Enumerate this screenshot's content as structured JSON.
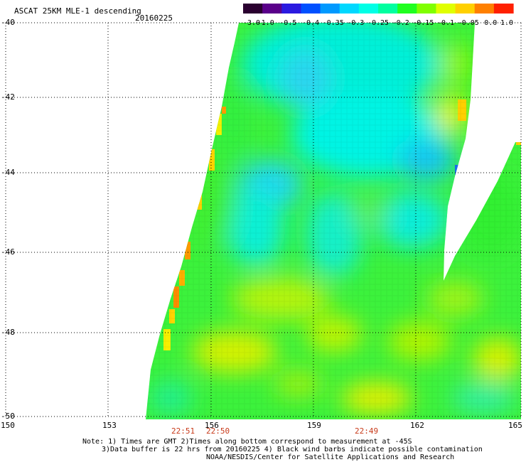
{
  "title": "ASCAT 25KM MLE-1 descending",
  "date": "20160225",
  "colorbar": {
    "labels": [
      "-3.0",
      "-1.0",
      "-0.5",
      "-0.4",
      "-0.35",
      "-0.3",
      "-0.25",
      "-0.2",
      "-0.15",
      "-0.1",
      "-0.05",
      "0.0",
      "1.0"
    ],
    "colors": [
      "#2a0030",
      "#5a008a",
      "#2a1ae0",
      "#0050ff",
      "#0099ff",
      "#00d8ff",
      "#00ffe6",
      "#00ffa0",
      "#20ff20",
      "#80ff00",
      "#e0ff00",
      "#ffd000",
      "#ff8000",
      "#ff2000"
    ]
  },
  "axes": {
    "lat_labels": [
      "-40",
      "-42",
      "-44",
      "-46",
      "-48",
      "-50"
    ],
    "lon_labels": [
      "150",
      "153",
      "156",
      "159",
      "162",
      "165"
    ]
  },
  "times": [
    "22:51",
    "22:50",
    "22:49"
  ],
  "notes": [
    "Note: 1) Times are GMT 2)Times along bottom correspond to measurement at -45S",
    "3)Data buffer is 22 hrs from 20160225 4) Black wind barbs indicate possible contamination",
    "NOAA/NESDIS/Center for Satellite Applications and Research"
  ]
}
